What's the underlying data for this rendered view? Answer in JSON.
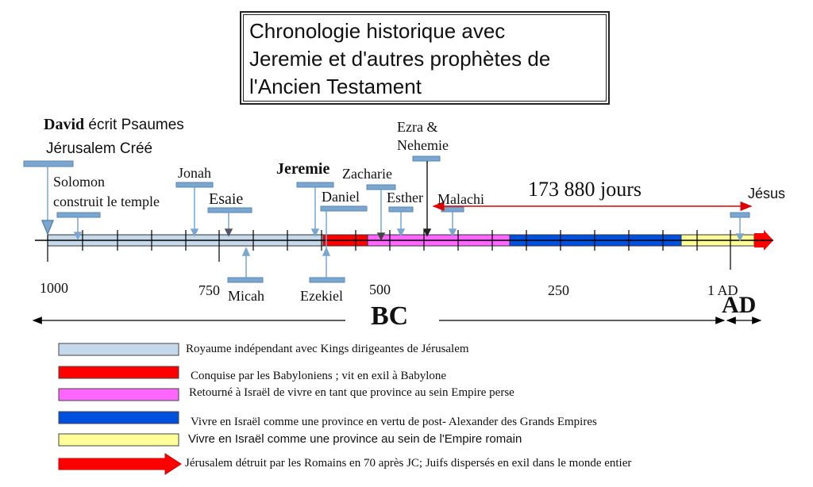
{
  "title": {
    "line1": "Chronologie historique avec",
    "line2": "Jeremie et d'autres prophètes de",
    "line3": "l'Ancien Testament"
  },
  "events": {
    "david": "David",
    "david_rest": "écrit Psaumes",
    "jerusalem": "Jérusalem Créé",
    "solomon1": "Solomon",
    "solomon2": "construit le temple",
    "jonah": "Jonah",
    "esaie": "Esaie",
    "jeremie": "Jeremie",
    "zacharie": "Zacharie",
    "daniel": "Daniel",
    "esther": "Esther",
    "malachi": "Malachi",
    "ezra1": "Ezra &",
    "ezra2": "Nehemie",
    "days": "173 880 jours",
    "jesus": "Jésus",
    "micah": "Micah",
    "ezekiel": "Ezekiel"
  },
  "axis": {
    "t1000": "1000",
    "t750": "750",
    "t500": "500",
    "t250": "250",
    "t1ad": "1 AD",
    "bc": "BC",
    "ad": "AD"
  },
  "legend": [
    {
      "color": "#c5d9ea",
      "text": "Royaume indépendant avec Kings dirigeantes de Jérusalem"
    },
    {
      "color": "#ff0000",
      "text": "Conquise par les Babyloniens ; vit en exil à Babylone"
    },
    {
      "color": "#ff66ff",
      "text": "Retourné à Israël de vivre en tant que province au sein Empire perse"
    },
    {
      "color": "#0050e0",
      "text": "Vivre en Israël comme une province en vertu de post- Alexander des Grands Empires"
    },
    {
      "color": "#ffff99",
      "text": "Vivre en Israël comme une province au sein de l'Empire romain"
    },
    {
      "color": "#ff0000",
      "text": "Jérusalem détruit par les Romains en 70 après JC; Juifs dispersés en exil dans le monde entier"
    }
  ],
  "colors": {
    "marker": "#7aa6cf",
    "arrow": "#ff0000"
  }
}
